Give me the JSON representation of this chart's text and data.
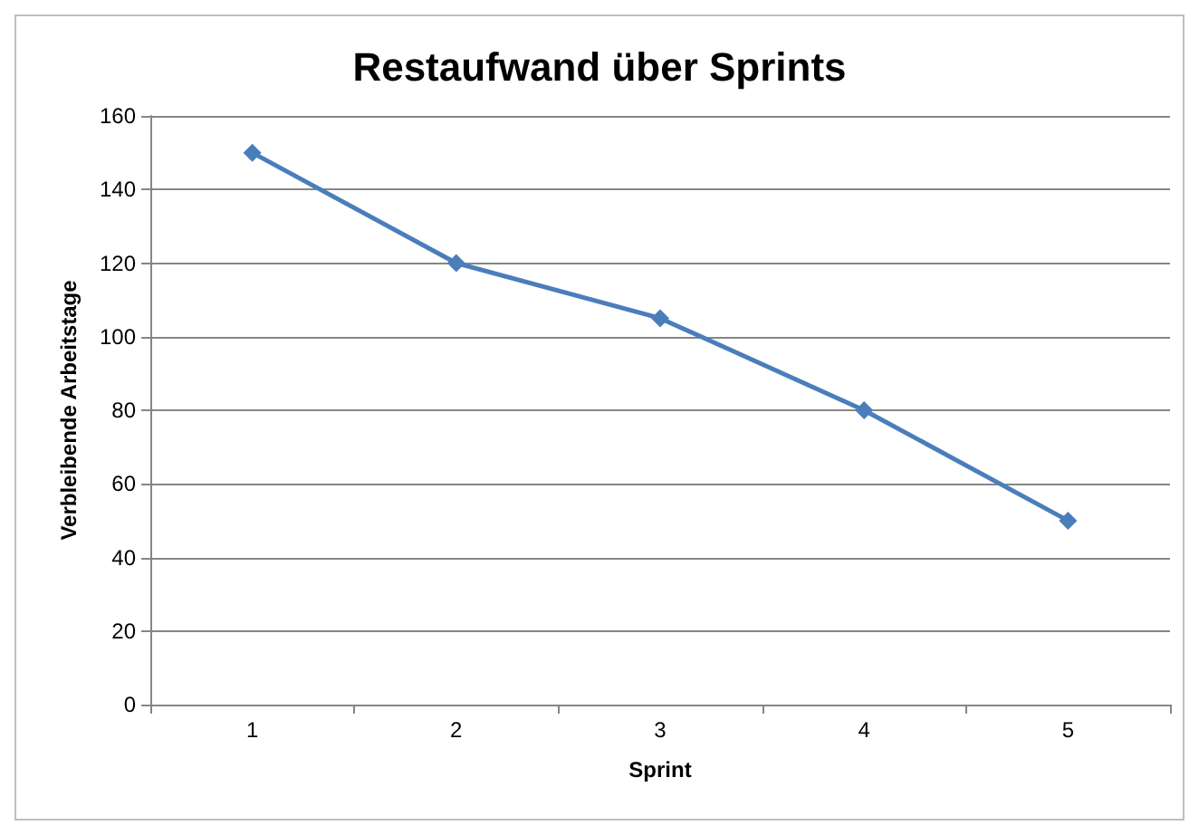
{
  "chart_data": {
    "type": "line",
    "title": "Restaufwand über Sprints",
    "xlabel": "Sprint",
    "ylabel": "Verbleibende Arbeitstage",
    "categories": [
      "1",
      "2",
      "3",
      "4",
      "5"
    ],
    "series": [
      {
        "color": "#4a7ebb",
        "values": [
          150,
          120,
          105,
          80,
          50
        ]
      }
    ],
    "ylim": [
      0,
      160
    ],
    "yticks": [
      0,
      20,
      40,
      60,
      80,
      100,
      120,
      140,
      160
    ],
    "grid": "y",
    "marker": "diamond",
    "line_style": "solid"
  }
}
